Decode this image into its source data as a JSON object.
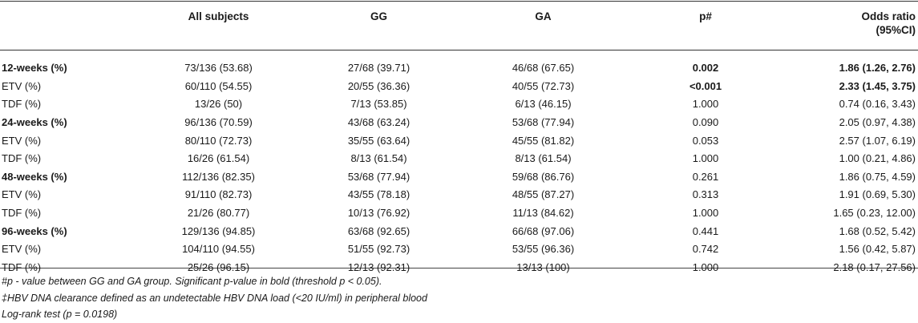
{
  "columns": [
    "",
    "All subjects",
    "GG",
    "GA",
    "p#",
    "Odds ratio\n(95%CI)"
  ],
  "header": {
    "col0": "",
    "col1": "All subjects",
    "col2": "GG",
    "col3": "GA",
    "col4": "p#",
    "col5_line1": "Odds ratio",
    "col5_line2": "(95%CI)"
  },
  "rows": [
    {
      "label": "12-weeks (%)",
      "all": "73/136 (53.68)",
      "gg": "27/68 (39.71)",
      "ga": "46/68 (67.65)",
      "p": "0.002",
      "or": "1.86 (1.26, 2.76)"
    },
    {
      "label": "ETV (%)",
      "all": "60/110 (54.55)",
      "gg": "20/55 (36.36)",
      "ga": "40/55 (72.73)",
      "p": "<0.001",
      "or": "2.33 (1.45, 3.75)"
    },
    {
      "label": "TDF (%)",
      "all": "13/26 (50)",
      "gg": "7/13 (53.85)",
      "ga": "6/13 (46.15)",
      "p": "1.000",
      "or": "0.74 (0.16, 3.43)"
    },
    {
      "label": "24-weeks (%)",
      "all": "96/136 (70.59)",
      "gg": "43/68 (63.24)",
      "ga": "53/68 (77.94)",
      "p": "0.090",
      "or": "2.05 (0.97, 4.38)"
    },
    {
      "label": "ETV (%)",
      "all": "80/110 (72.73)",
      "gg": "35/55 (63.64)",
      "ga": "45/55 (81.82)",
      "p": "0.053",
      "or": "2.57 (1.07, 6.19)"
    },
    {
      "label": "TDF (%)",
      "all": "16/26 (61.54)",
      "gg": "8/13 (61.54)",
      "ga": "8/13 (61.54)",
      "p": "1.000",
      "or": "1.00 (0.21, 4.86)"
    },
    {
      "label": "48-weeks (%)",
      "all": "112/136 (82.35)",
      "gg": "53/68 (77.94)",
      "ga": "59/68 (86.76)",
      "p": "0.261",
      "or": "1.86 (0.75, 4.59)"
    },
    {
      "label": "ETV (%)",
      "all": "91/110 (82.73)",
      "gg": "43/55 (78.18)",
      "ga": "48/55 (87.27)",
      "p": "0.313",
      "or": "1.91 (0.69, 5.30)"
    },
    {
      "label": "TDF (%)",
      "all": "21/26 (80.77)",
      "gg": "10/13 (76.92)",
      "ga": "11/13 (84.62)",
      "p": "1.000",
      "or": "1.65 (0.23, 12.00)"
    },
    {
      "label": "96-weeks (%)",
      "all": "129/136 (94.85)",
      "gg": "63/68 (92.65)",
      "ga": "66/68 (97.06)",
      "p": "0.441",
      "or": "1.68 (0.52, 5.42)"
    },
    {
      "label": "ETV (%)",
      "all": "104/110 (94.55)",
      "gg": "51/55 (92.73)",
      "ga": "53/55 (96.36)",
      "p": "0.742",
      "or": "1.56 (0.42, 5.87)"
    },
    {
      "label": "TDF (%)",
      "all": "25/26 (96.15)",
      "gg": "12/13 (92.31)",
      "ga": "13/13 (100)",
      "p": "1.000",
      "or": "2.18 (0.17, 27.56)"
    }
  ],
  "footnotes": {
    "note1": "#p - value between GG and GA group. Significant p-value in bold (threshold p < 0.05).",
    "note2": "‡HBV DNA clearance defined as an undetectable HBV DNA load (<20 IU/ml) in peripheral blood",
    "note3": "Log-rank test (p = 0.0198)"
  }
}
